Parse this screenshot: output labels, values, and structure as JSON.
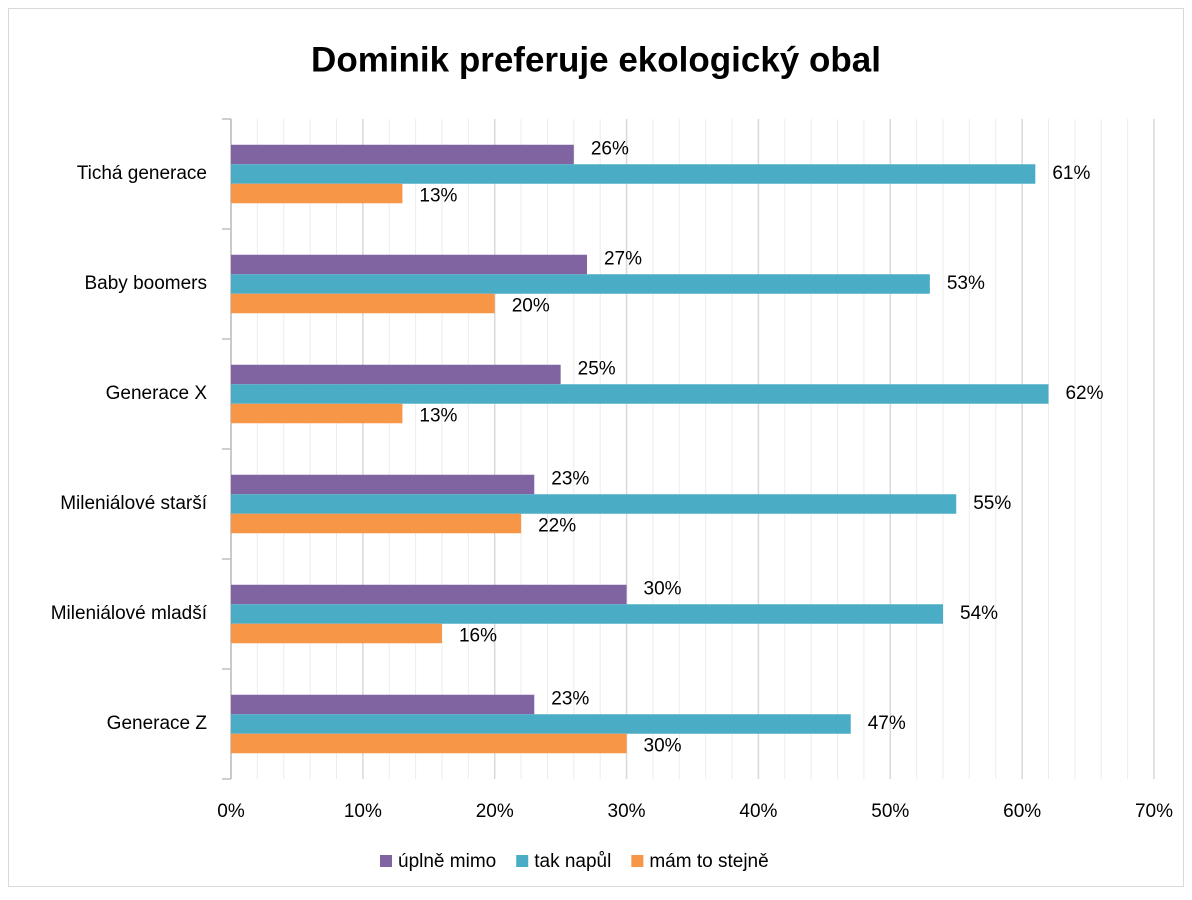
{
  "chart_data": {
    "type": "hbar",
    "title": "Dominik preferuje ekologický obal",
    "categories": [
      "Tichá generace",
      "Baby boomers",
      "Generace X",
      "Mileniálové starší",
      "Mileniálové mladší",
      "Generace Z"
    ],
    "series": [
      {
        "name": "úplně mimo",
        "color": "#8064a2",
        "values": [
          26,
          27,
          25,
          23,
          30,
          23
        ],
        "value_labels": [
          "26%",
          "27%",
          "25%",
          "23%",
          "30%",
          "23%"
        ]
      },
      {
        "name": "tak napůl",
        "color": "#4bacc6",
        "values": [
          61,
          53,
          62,
          55,
          54,
          47
        ],
        "value_labels": [
          "61%",
          "53%",
          "62%",
          "55%",
          "54%",
          "47%"
        ]
      },
      {
        "name": "mám to stejně",
        "color": "#f79646",
        "values": [
          13,
          20,
          13,
          22,
          16,
          30
        ],
        "value_labels": [
          "13%",
          "20%",
          "13%",
          "22%",
          "16%",
          "30%"
        ]
      }
    ],
    "xlim": [
      0,
      70
    ],
    "xticks": [
      {
        "value": 0,
        "label": "0%"
      },
      {
        "value": 10,
        "label": "10%"
      },
      {
        "value": 20,
        "label": "20%"
      },
      {
        "value": 30,
        "label": "30%"
      },
      {
        "value": 40,
        "label": "40%"
      },
      {
        "value": 50,
        "label": "50%"
      },
      {
        "value": 60,
        "label": "60%"
      },
      {
        "value": 70,
        "label": "70%"
      }
    ],
    "xminorticks": [
      2,
      4,
      6,
      8,
      12,
      14,
      16,
      18,
      22,
      24,
      26,
      28,
      32,
      34,
      36,
      38,
      42,
      44,
      46,
      48,
      52,
      54,
      56,
      58,
      62,
      64,
      66,
      68
    ],
    "grid": true,
    "legend": "bottom"
  }
}
